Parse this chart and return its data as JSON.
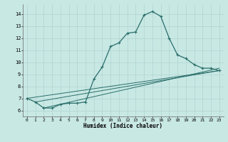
{
  "title": "",
  "xlabel": "Humidex (Indice chaleur)",
  "xlim": [
    -0.5,
    23.5
  ],
  "ylim": [
    5.5,
    14.8
  ],
  "yticks": [
    6,
    7,
    8,
    9,
    10,
    11,
    12,
    13,
    14
  ],
  "xticks": [
    0,
    1,
    2,
    3,
    4,
    5,
    6,
    7,
    8,
    9,
    10,
    11,
    12,
    13,
    14,
    15,
    16,
    17,
    18,
    19,
    20,
    21,
    22,
    23
  ],
  "background_color": "#c8e8e4",
  "grid_color": "#b0d4d0",
  "line_color": "#2a6e6a",
  "series": {
    "main": {
      "x": [
        0,
        1,
        2,
        3,
        4,
        5,
        6,
        7,
        8,
        9,
        10,
        11,
        12,
        13,
        14,
        15,
        16,
        17,
        18,
        19,
        20,
        21,
        22,
        23
      ],
      "y": [
        7.0,
        6.7,
        6.2,
        6.2,
        6.5,
        6.6,
        6.6,
        6.7,
        8.6,
        9.6,
        11.3,
        11.6,
        12.4,
        12.5,
        13.9,
        14.2,
        13.8,
        12.0,
        10.6,
        10.3,
        9.8,
        9.5,
        9.5,
        9.3
      ]
    },
    "line1": {
      "x": [
        0,
        23
      ],
      "y": [
        7.0,
        9.3
      ]
    },
    "line2": {
      "x": [
        1,
        23
      ],
      "y": [
        6.7,
        9.3
      ]
    },
    "line3": {
      "x": [
        2,
        23
      ],
      "y": [
        6.2,
        9.5
      ]
    }
  }
}
